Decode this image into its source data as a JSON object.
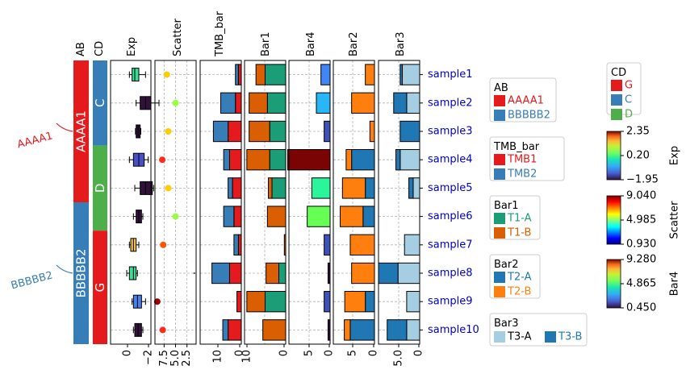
{
  "chart_data": {
    "type": "heatmap",
    "rows": [
      "sample1",
      "sample2",
      "sample3",
      "sample4",
      "sample5",
      "sample6",
      "sample7",
      "sample8",
      "sample9",
      "sample10"
    ],
    "row_label_color": "#0000cc",
    "ab": {
      "title": "AB",
      "groups": [
        {
          "label": "AAAA1",
          "color": "#e41a1c",
          "start": 0,
          "end": 5
        },
        {
          "label": "BBBBB2",
          "color": "#377eb8",
          "start": 5,
          "end": 10
        }
      ]
    },
    "cd": {
      "title": "CD",
      "groups": [
        {
          "label": "C",
          "color": "#377eb8",
          "start": 0,
          "end": 3
        },
        {
          "label": "D",
          "color": "#4daf4a",
          "start": 3,
          "end": 6
        },
        {
          "label": "G",
          "color": "#e41a1c",
          "start": 6,
          "end": 10
        }
      ]
    },
    "exp": {
      "title": "Exp",
      "xlim": [
        -2,
        1
      ],
      "ticks": [
        0,
        -2
      ],
      "boxes": [
        {
          "q1": -0.4,
          "q3": 0.1,
          "med": -0.2,
          "lo": -0.6,
          "hi": 0.6,
          "color": "#3ddc97"
        },
        {
          "q1": 0.2,
          "q3": 1.0,
          "med": 0.6,
          "lo": -0.1,
          "hi": 1.6,
          "color": "#30123b"
        },
        {
          "q1": -0.1,
          "q3": 0.2,
          "med": 0.05,
          "lo": -0.15,
          "hi": 0.25,
          "color": "#30123b"
        },
        {
          "q1": -0.3,
          "q3": 0.5,
          "med": 0.1,
          "lo": -0.6,
          "hi": 0.8,
          "color": "#4a50c4"
        },
        {
          "q1": 0.2,
          "q3": 1.1,
          "med": 0.6,
          "lo": -0.2,
          "hi": 1.2,
          "color": "#30123b"
        },
        {
          "q1": -0.1,
          "q3": 0.3,
          "med": 0.1,
          "lo": -0.3,
          "hi": 0.4,
          "color": "#30123b"
        },
        {
          "q1": -0.5,
          "q3": -0.1,
          "med": -0.3,
          "lo": -0.6,
          "hi": 0.1,
          "color": "#f2c14e"
        },
        {
          "q1": -0.6,
          "q3": -0.1,
          "med": -0.3,
          "lo": -0.8,
          "hi": 0.0,
          "color": "#3ddc97"
        },
        {
          "q1": -0.3,
          "q3": 0.3,
          "med": 0.0,
          "lo": -0.4,
          "hi": 0.6,
          "color": "#4a80f0"
        },
        {
          "q1": -0.2,
          "q3": 0.3,
          "med": 0.05,
          "lo": -0.3,
          "hi": 0.4,
          "color": "#30123b"
        }
      ]
    },
    "scatter": {
      "title": "Scatter",
      "xlim": [
        9.5,
        0.5
      ],
      "ticks": [
        7.5,
        5.0,
        2.5
      ],
      "tick_labels": [
        "7.5",
        "5.0",
        "2.5"
      ],
      "points": [
        {
          "x": 6.9,
          "value": 7.0,
          "color": "#ffcc00"
        },
        {
          "x": 5.0,
          "value": 4.6,
          "color": "#99ff44"
        },
        {
          "x": 6.6,
          "value": 7.3,
          "color": "#ffcc00"
        },
        {
          "x": 7.9,
          "value": 8.9,
          "color": "#ff2a1a"
        },
        {
          "x": 6.6,
          "value": 7.3,
          "color": "#ffcc00"
        },
        {
          "x": 5.0,
          "value": 4.6,
          "color": "#99ff44"
        },
        {
          "x": 7.7,
          "value": 8.7,
          "color": "#ff5500"
        },
        {
          "x": 0.9,
          "value": 0.93,
          "color": "#303030"
        },
        {
          "x": 9.0,
          "value": 9.04,
          "color": "#990000"
        },
        {
          "x": 7.8,
          "value": 8.8,
          "color": "#ff2a1a"
        }
      ]
    },
    "tmb_bar": {
      "title": "TMB_bar",
      "xlim": [
        14,
        0
      ],
      "ticks": [
        10,
        0
      ],
      "series": [
        {
          "name": "TMB1",
          "color": "#e41a1c",
          "values": [
            1,
            2,
            4.5,
            4,
            3,
            2.5,
            1,
            4,
            1.5,
            4.5
          ]
        },
        {
          "name": "TMB2",
          "color": "#377eb8",
          "values": [
            1,
            5,
            5,
            2,
            1.5,
            3.5,
            1.5,
            6,
            0,
            1.8
          ]
        }
      ]
    },
    "bar1": {
      "title": "Bar1",
      "xlim": [
        9,
        0
      ],
      "ticks": [
        10,
        0
      ],
      "series": [
        {
          "name": "T1-A",
          "color": "#1b9e77",
          "values": [
            4.5,
            4,
            3.5,
            3.5,
            3,
            0,
            0,
            1.5,
            4.5,
            0
          ]
        },
        {
          "name": "T1-B",
          "color": "#d95f02",
          "values": [
            2,
            4,
            4.5,
            5,
            0.8,
            4,
            0.3,
            2.8,
            4,
            5
          ]
        }
      ]
    },
    "bar4": {
      "title": "Bar4",
      "xlim": [
        9,
        0
      ],
      "ticks": [
        5,
        0
      ],
      "series": [
        {
          "name": "Bar4",
          "values": [
            2,
            3,
            1.3,
            9.28,
            4,
            5,
            1.3,
            0.45,
            1.3,
            0.45
          ],
          "colors": [
            "#4285f4",
            "#29b6f6",
            "#3f51b5",
            "#7a0403",
            "#2af59a",
            "#66ff55",
            "#3f51b5",
            "#30123b",
            "#3f51b5",
            "#30123b"
          ]
        }
      ]
    },
    "bar2": {
      "title": "Bar2",
      "xlim": [
        9,
        0
      ],
      "ticks": [
        5,
        0
      ],
      "series": [
        {
          "name": "T2-A",
          "color": "#1f78b4",
          "values": [
            0,
            0,
            0,
            5,
            2,
            2.5,
            0,
            0,
            2,
            5.3
          ]
        },
        {
          "name": "T2-B",
          "color": "#ff7f0e",
          "values": [
            2,
            5,
            1,
            1.2,
            5,
            5,
            5.3,
            5,
            4.5,
            1.3
          ]
        }
      ]
    },
    "bar3": {
      "title": "Bar3",
      "xlim": [
        9.5,
        0
      ],
      "ticks": [
        5,
        0
      ],
      "tick_labels": [
        "5.0",
        "0"
      ],
      "series": [
        {
          "name": "T3-A",
          "color": "#a6cee3",
          "values": [
            4,
            3,
            0,
            4.5,
            1.5,
            0,
            3.5,
            5,
            3,
            3
          ]
        },
        {
          "name": "T3-B",
          "color": "#1f78b4",
          "values": [
            0.5,
            3,
            4.5,
            1,
            1,
            0,
            0,
            4.5,
            0,
            4.5
          ]
        }
      ]
    },
    "legends": {
      "ab": {
        "title": "AB",
        "items": [
          {
            "label": "AAAA1",
            "color": "#e41a1c"
          },
          {
            "label": "BBBBB2",
            "color": "#377eb8"
          }
        ]
      },
      "tmb": {
        "title": "TMB_bar",
        "items": [
          {
            "label": "TMB1",
            "color": "#e41a1c"
          },
          {
            "label": "TMB2",
            "color": "#377eb8"
          }
        ]
      },
      "bar1": {
        "title": "Bar1",
        "items": [
          {
            "label": "T1-A",
            "color": "#1b9e77"
          },
          {
            "label": "T1-B",
            "color": "#d95f02"
          }
        ]
      },
      "bar2": {
        "title": "Bar2",
        "items": [
          {
            "label": "T2-A",
            "color": "#1f78b4"
          },
          {
            "label": "T2-B",
            "color": "#ff7f0e"
          }
        ]
      },
      "bar3": {
        "title": "Bar3",
        "items": [
          {
            "label": "T3-A",
            "color": "#a6cee3"
          },
          {
            "label": "T3-B",
            "color": "#1f78b4"
          }
        ]
      },
      "cd": {
        "title": "CD",
        "items": [
          {
            "label": "G",
            "color": "#e41a1c"
          },
          {
            "label": "C",
            "color": "#377eb8"
          },
          {
            "label": "D",
            "color": "#4daf4a"
          }
        ]
      }
    },
    "colorbars": [
      {
        "name": "Exp",
        "min": "−1.95",
        "mid": "0.20",
        "max": "2.35",
        "colormap": "turbo"
      },
      {
        "name": "Scatter",
        "min": "0.930",
        "mid": "4.985",
        "max": "9.040",
        "colormap": "jet"
      },
      {
        "name": "Bar4",
        "min": "0.450",
        "mid": "4.865",
        "max": "9.280",
        "colormap": "turbo"
      }
    ],
    "grid": true
  }
}
